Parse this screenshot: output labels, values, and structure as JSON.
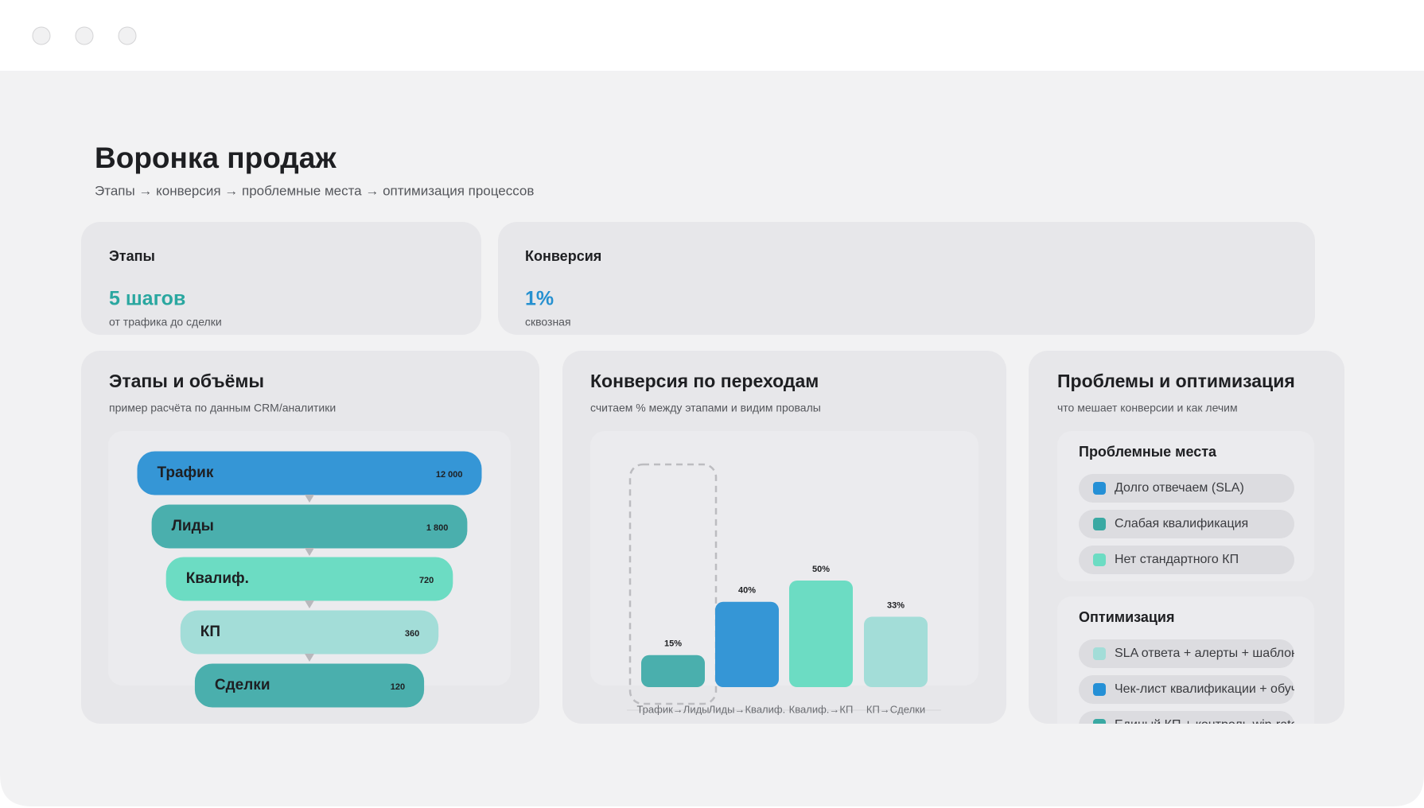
{
  "header": {
    "title": "Воронка продаж",
    "subtitle": "Этапы → конверсия → проблемные места → оптимизация процессов"
  },
  "kpis": [
    {
      "label": "Этапы",
      "value": "5 шагов",
      "note": "от трафика до сделки"
    },
    {
      "label": "Конверсия",
      "value": "1%",
      "note": "сквозная"
    }
  ],
  "chart_data": [
    {
      "type": "funnel",
      "title": "Этапы и объёмы",
      "subtitle": "пример расчёта по данным CRM/аналитики",
      "categories": [
        "Трафик",
        "Лиды",
        "Квалиф.",
        "КП",
        "Сделки"
      ],
      "values": [
        12000,
        1800,
        720,
        360,
        120
      ],
      "value_labels": [
        "12 000",
        "1 800",
        "720",
        "360",
        "120"
      ],
      "colors": [
        "#3596d6",
        "#4aafad",
        "#6cdcc3",
        "#a3ddd8",
        "#4aafad"
      ]
    },
    {
      "type": "bar",
      "title": "Конверсия по переходам",
      "subtitle": "считаем % между этапами и видим провалы",
      "categories": [
        "Трафик→Лиды",
        "Лиды→Квалиф.",
        "Квалиф.→КП",
        "КП→Сделки"
      ],
      "values": [
        15,
        40,
        50,
        33
      ],
      "value_labels": [
        "15%",
        "40%",
        "50%",
        "33%"
      ],
      "colors": [
        "#4aafad",
        "#3596d6",
        "#6cdcc3",
        "#a3ddd8"
      ],
      "ylim": [
        0,
        100
      ],
      "highlight": 0
    }
  ],
  "problems": {
    "title": "Проблемы и оптимизация",
    "subtitle": "что мешает конверсии и как лечим",
    "issues": {
      "title": "Проблемные места",
      "items": [
        {
          "text": "Долго отвечаем (SLA)",
          "color": "#2590d6"
        },
        {
          "text": "Слабая квалификация",
          "color": "#3aa9a3"
        },
        {
          "text": "Нет стандартного КП",
          "color": "#6cdcc3"
        }
      ]
    },
    "optimization": {
      "title": "Оптимизация",
      "items": [
        {
          "text": "SLA ответа + алерты + шаблоны",
          "color": "#a3ddd8"
        },
        {
          "text": "Чек-лист квалификации + обучение",
          "color": "#2590d6"
        },
        {
          "text": "Единый КП + контроль win-rate",
          "color": "#3aa9a3"
        }
      ]
    }
  }
}
